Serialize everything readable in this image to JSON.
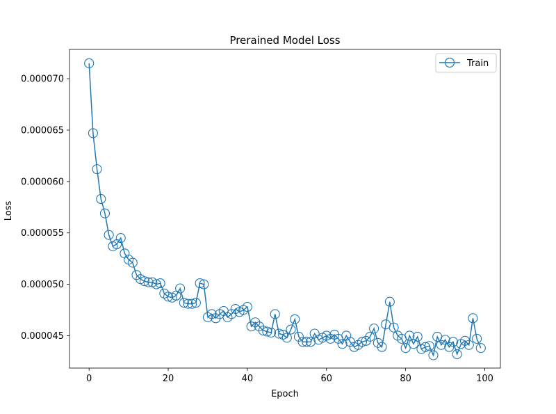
{
  "chart_data": {
    "type": "line",
    "title": "Prerained Model Loss",
    "xlabel": "Epoch",
    "ylabel": "Loss",
    "xlim": [
      -4.95,
      103.95
    ],
    "ylim": [
      4.185e-05,
      7.285e-05
    ],
    "xticks": [
      0,
      20,
      40,
      60,
      80,
      100
    ],
    "xtick_labels": [
      "0",
      "20",
      "40",
      "60",
      "80",
      "100"
    ],
    "yticks": [
      4.5e-05,
      5e-05,
      5.5e-05,
      6e-05,
      6.5e-05,
      7e-05
    ],
    "ytick_labels": [
      "0.000045",
      "0.000050",
      "0.000055",
      "0.000060",
      "0.000065",
      "0.000070"
    ],
    "grid": false,
    "legend_position": "top-right",
    "series": [
      {
        "name": "Train",
        "color": "#1f77b4",
        "marker": "open-circle",
        "x": [
          0,
          1,
          2,
          3,
          4,
          5,
          6,
          7,
          8,
          9,
          10,
          11,
          12,
          13,
          14,
          15,
          16,
          17,
          18,
          19,
          20,
          21,
          22,
          23,
          24,
          25,
          26,
          27,
          28,
          29,
          30,
          31,
          32,
          33,
          34,
          35,
          36,
          37,
          38,
          39,
          40,
          41,
          42,
          43,
          44,
          45,
          46,
          47,
          48,
          49,
          50,
          51,
          52,
          53,
          54,
          55,
          56,
          57,
          58,
          59,
          60,
          61,
          62,
          63,
          64,
          65,
          66,
          67,
          68,
          69,
          70,
          71,
          72,
          73,
          74,
          75,
          76,
          77,
          78,
          79,
          80,
          81,
          82,
          83,
          84,
          85,
          86,
          87,
          88,
          89,
          90,
          91,
          92,
          93,
          94,
          95,
          96,
          97,
          98,
          99
        ],
        "values": [
          7.15e-05,
          6.47e-05,
          6.12e-05,
          5.83e-05,
          5.69e-05,
          5.48e-05,
          5.37e-05,
          5.39e-05,
          5.45e-05,
          5.3e-05,
          5.24e-05,
          5.21e-05,
          5.09e-05,
          5.05e-05,
          5.03e-05,
          5.02e-05,
          5.02e-05,
          5e-05,
          5.01e-05,
          4.91e-05,
          4.88e-05,
          4.87e-05,
          4.89e-05,
          4.96e-05,
          4.82e-05,
          4.81e-05,
          4.81e-05,
          4.82e-05,
          5.01e-05,
          5e-05,
          4.68e-05,
          4.71e-05,
          4.67e-05,
          4.71e-05,
          4.74e-05,
          4.68e-05,
          4.71e-05,
          4.76e-05,
          4.73e-05,
          4.75e-05,
          4.78e-05,
          4.59e-05,
          4.63e-05,
          4.59e-05,
          4.55e-05,
          4.54e-05,
          4.53e-05,
          4.71e-05,
          4.52e-05,
          4.51e-05,
          4.48e-05,
          4.56e-05,
          4.66e-05,
          4.49e-05,
          4.44e-05,
          4.44e-05,
          4.44e-05,
          4.52e-05,
          4.46e-05,
          4.48e-05,
          4.5e-05,
          4.47e-05,
          4.51e-05,
          4.47e-05,
          4.42e-05,
          4.5e-05,
          4.44e-05,
          4.39e-05,
          4.41e-05,
          4.44e-05,
          4.45e-05,
          4.49e-05,
          4.57e-05,
          4.43e-05,
          4.39e-05,
          4.61e-05,
          4.83e-05,
          4.58e-05,
          4.5e-05,
          4.47e-05,
          4.38e-05,
          4.5e-05,
          4.42e-05,
          4.49e-05,
          4.37e-05,
          4.39e-05,
          4.4e-05,
          4.31e-05,
          4.49e-05,
          4.41e-05,
          4.46e-05,
          4.39e-05,
          4.44e-05,
          4.32e-05,
          4.42e-05,
          4.45e-05,
          4.41e-05,
          4.67e-05,
          4.47e-05,
          4.38e-05
        ]
      }
    ]
  }
}
